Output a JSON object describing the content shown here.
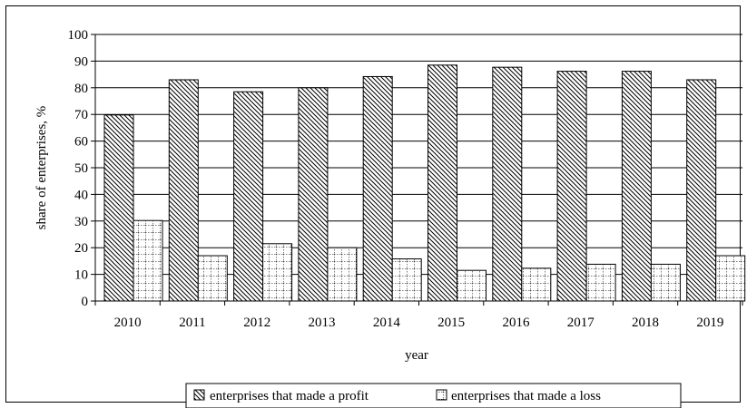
{
  "chart_data": {
    "type": "bar",
    "title": "",
    "xlabel": "year",
    "ylabel": "share of enterprises, %",
    "categories": [
      "2010",
      "2011",
      "2012",
      "2013",
      "2014",
      "2015",
      "2016",
      "2017",
      "2018",
      "2019"
    ],
    "series": [
      {
        "name": "enterprises that made a profit",
        "values": [
          69.8,
          83.0,
          78.5,
          80.0,
          84.2,
          88.5,
          87.7,
          86.2,
          86.2,
          83.0
        ]
      },
      {
        "name": "enterprises that made a loss",
        "values": [
          30.2,
          17.0,
          21.5,
          20.0,
          15.8,
          11.5,
          12.3,
          13.8,
          13.8,
          17.0
        ]
      }
    ],
    "ylim": [
      0,
      100
    ],
    "yticks": [
      0,
      10,
      20,
      30,
      40,
      50,
      60,
      70,
      80,
      90,
      100
    ],
    "grid": true,
    "legend_position": "bottom",
    "colors": {
      "bar_fill": "#ffffff",
      "bar_stroke": "#000000",
      "hatch": "#000000",
      "grid": "#000000"
    }
  }
}
